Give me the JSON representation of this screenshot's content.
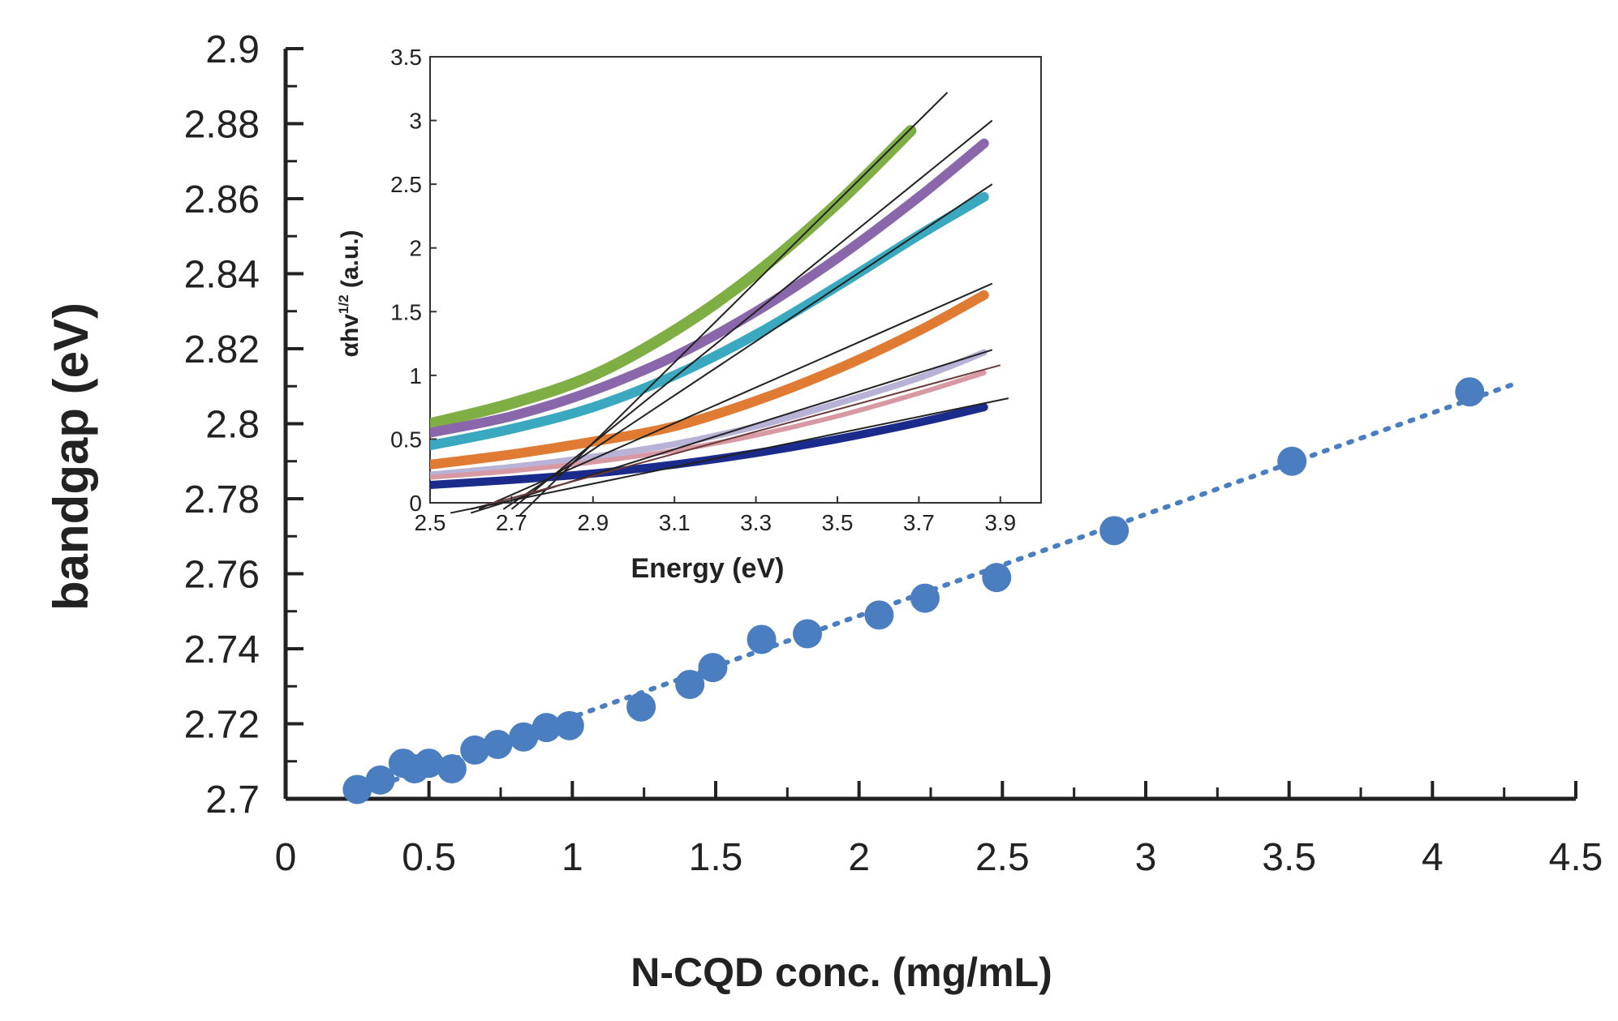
{
  "chart_data": [
    {
      "type": "scatter",
      "id": "main",
      "title": "",
      "xlabel": "N-CQD conc. (mg/mL)",
      "ylabel": "bandgap (eV)",
      "xlim": [
        0,
        4.5
      ],
      "ylim": [
        2.7,
        2.9
      ],
      "xticks": [
        "0",
        "0.5",
        "1",
        "1.5",
        "2",
        "2.5",
        "3",
        "3.5",
        "4",
        "4.5"
      ],
      "yticks": [
        "2.7",
        "2.72",
        "2.74",
        "2.76",
        "2.78",
        "2.8",
        "2.82",
        "2.84",
        "2.86",
        "2.88",
        "2.9"
      ],
      "marker_color": "#4a7ec0",
      "trendline": {
        "style": "dotted",
        "color": "#4a7ec0",
        "x": [
          0.25,
          4.3
        ],
        "y": [
          2.7015,
          2.811
        ]
      },
      "points": [
        {
          "x": 0.25,
          "y": 2.7025
        },
        {
          "x": 0.33,
          "y": 2.705
        },
        {
          "x": 0.41,
          "y": 2.7095
        },
        {
          "x": 0.45,
          "y": 2.708
        },
        {
          "x": 0.5,
          "y": 2.7095
        },
        {
          "x": 0.58,
          "y": 2.708
        },
        {
          "x": 0.66,
          "y": 2.713
        },
        {
          "x": 0.74,
          "y": 2.7145
        },
        {
          "x": 0.83,
          "y": 2.7165
        },
        {
          "x": 0.91,
          "y": 2.719
        },
        {
          "x": 0.99,
          "y": 2.7195
        },
        {
          "x": 1.24,
          "y": 2.7245
        },
        {
          "x": 1.41,
          "y": 2.7305
        },
        {
          "x": 1.49,
          "y": 2.735
        },
        {
          "x": 1.66,
          "y": 2.7425
        },
        {
          "x": 1.82,
          "y": 2.744
        },
        {
          "x": 2.07,
          "y": 2.749
        },
        {
          "x": 2.23,
          "y": 2.7535
        },
        {
          "x": 2.48,
          "y": 2.759
        },
        {
          "x": 2.89,
          "y": 2.7715
        },
        {
          "x": 3.51,
          "y": 2.79
        },
        {
          "x": 4.13,
          "y": 2.8085
        }
      ]
    },
    {
      "type": "line",
      "id": "inset",
      "title": "",
      "xlabel": "Energy (eV)",
      "ylabel": "αhv",
      "ylabel_sup": "1/2",
      "ylabel_unit": " (a.u.)",
      "xlim": [
        2.5,
        4.0
      ],
      "ylim": [
        0,
        3.5
      ],
      "xticks": [
        "2.5",
        "2.7",
        "2.9",
        "3.1",
        "3.3",
        "3.5",
        "3.7",
        "3.9"
      ],
      "yticks": [
        "0",
        "0.5",
        "1",
        "1.5",
        "2",
        "2.5",
        "3",
        "3.5"
      ],
      "series": [
        {
          "name": "green",
          "color": "#7fae45",
          "width": 14,
          "x_end": 3.68,
          "x": [
            2.5,
            2.7,
            2.9,
            3.1,
            3.3,
            3.5,
            3.68
          ],
          "y": [
            0.62,
            0.78,
            1.0,
            1.35,
            1.8,
            2.35,
            2.92
          ]
        },
        {
          "name": "purple",
          "color": "#8a67ab",
          "width": 12,
          "x_end": 3.86,
          "x": [
            2.5,
            2.7,
            2.9,
            3.1,
            3.3,
            3.5,
            3.7,
            3.86
          ],
          "y": [
            0.55,
            0.68,
            0.88,
            1.15,
            1.5,
            1.92,
            2.4,
            2.82
          ]
        },
        {
          "name": "teal",
          "color": "#3aa9bf",
          "width": 12,
          "x_end": 3.86,
          "x": [
            2.5,
            2.7,
            2.9,
            3.1,
            3.3,
            3.5,
            3.7,
            3.86
          ],
          "y": [
            0.45,
            0.58,
            0.75,
            1.0,
            1.32,
            1.7,
            2.1,
            2.4
          ]
        },
        {
          "name": "orange",
          "color": "#e07b34",
          "width": 12,
          "x_end": 3.86,
          "x": [
            2.5,
            2.7,
            2.9,
            3.1,
            3.3,
            3.5,
            3.7,
            3.86
          ],
          "y": [
            0.3,
            0.38,
            0.48,
            0.6,
            0.8,
            1.05,
            1.35,
            1.63
          ]
        },
        {
          "name": "lavender",
          "color": "#b8b3d6",
          "width": 8,
          "x_end": 3.86,
          "x": [
            2.5,
            2.7,
            2.9,
            3.1,
            3.3,
            3.5,
            3.7,
            3.86
          ],
          "y": [
            0.22,
            0.28,
            0.36,
            0.46,
            0.6,
            0.78,
            0.98,
            1.18
          ]
        },
        {
          "name": "pink",
          "color": "#d79aa5",
          "width": 6,
          "x_end": 3.86,
          "x": [
            2.5,
            2.7,
            2.9,
            3.1,
            3.3,
            3.5,
            3.7,
            3.86
          ],
          "y": [
            0.2,
            0.25,
            0.32,
            0.41,
            0.53,
            0.68,
            0.86,
            1.02
          ]
        },
        {
          "name": "navy",
          "color": "#1a2b8c",
          "width": 10,
          "x_end": 3.86,
          "x": [
            2.5,
            2.7,
            2.9,
            3.1,
            3.3,
            3.5,
            3.7,
            3.86
          ],
          "y": [
            0.14,
            0.18,
            0.23,
            0.3,
            0.39,
            0.5,
            0.63,
            0.75
          ]
        }
      ],
      "tangent_lines": [
        {
          "color": "#222",
          "x": [
            2.72,
            3.77
          ],
          "y": [
            -0.1,
            3.22
          ]
        },
        {
          "color": "#222",
          "x": [
            2.7,
            3.88
          ],
          "y": [
            -0.05,
            3.0
          ]
        },
        {
          "color": "#222",
          "x": [
            2.68,
            3.88
          ],
          "y": [
            -0.05,
            2.5
          ]
        },
        {
          "color": "#222",
          "x": [
            2.62,
            3.88
          ],
          "y": [
            -0.05,
            1.72
          ]
        },
        {
          "color": "#222",
          "x": [
            2.6,
            3.88
          ],
          "y": [
            -0.08,
            1.2
          ]
        },
        {
          "color": "#6b3a3a",
          "x": [
            2.6,
            3.9
          ],
          "y": [
            -0.05,
            1.08
          ]
        },
        {
          "color": "#222",
          "x": [
            2.55,
            3.92
          ],
          "y": [
            -0.08,
            0.82
          ]
        }
      ]
    }
  ]
}
